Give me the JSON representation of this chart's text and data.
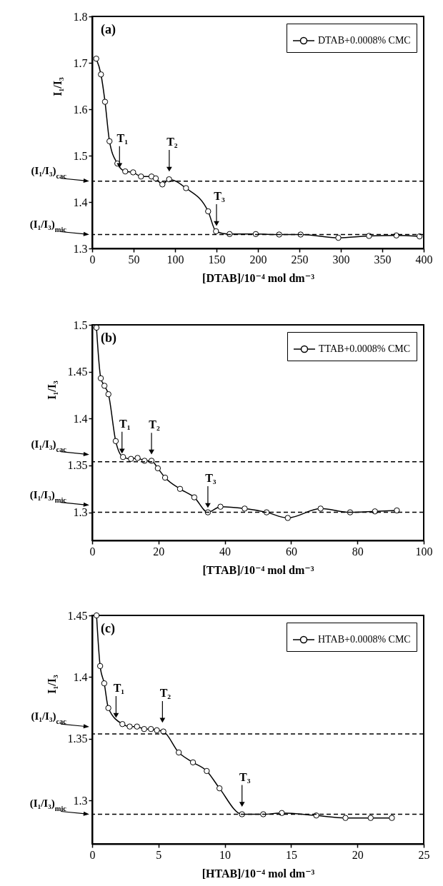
{
  "chart_data": [
    {
      "type": "line",
      "title": "(a)",
      "xlabel": "[DTAB]/10⁻⁴ mol dm⁻³",
      "ylabel": "I₁/I₃",
      "xlim": [
        0,
        400
      ],
      "xticks": [
        0,
        50,
        100,
        150,
        200,
        250,
        300,
        350,
        400
      ],
      "ylim": [
        1.3,
        1.8
      ],
      "yticks": [
        1.3,
        1.4,
        1.5,
        1.6,
        1.7,
        1.8
      ],
      "legend": "top right",
      "marker": "circle",
      "line_style": "solid",
      "series": [
        {
          "name": "DTAB+0.0008% CMC",
          "color": "#000000",
          "x": [
            4.9,
            10.6,
            15.5,
            20.9,
            30.4,
            39.9,
            49.4,
            58.9,
            71.6,
            76.7,
            84.7,
            92.8,
            113.2,
            139.9,
            149.4,
            165.8,
            197.4,
            225.6,
            251.5,
            297,
            334,
            367,
            395
          ],
          "values": [
            1.709,
            1.675,
            1.616,
            1.531,
            1.483,
            1.466,
            1.464,
            1.455,
            1.455,
            1.451,
            1.438,
            1.449,
            1.43,
            1.38,
            1.337,
            1.331,
            1.331,
            1.33,
            1.33,
            1.323,
            1.327,
            1.328,
            1.326
          ]
        }
      ],
      "ref_lines": [
        {
          "axis": "y",
          "value": 1.445,
          "label": "(I₁/I₃)$_{cac}$",
          "line_style": "dashed"
        },
        {
          "axis": "y",
          "value": 1.33,
          "label": "(I₁/I₃)$_{mic}$",
          "line_style": "dashed"
        }
      ],
      "annotations": [
        {
          "text": "T₁",
          "x": 33,
          "y": 1.468
        },
        {
          "text": "T₂",
          "x": 93,
          "y": 1.46
        },
        {
          "text": "T₃",
          "x": 150,
          "y": 1.343
        }
      ]
    },
    {
      "type": "line",
      "title": "(b)",
      "xlabel": "[TTAB]/10⁻⁴ mol dm⁻³",
      "ylabel": "I₁/I₃",
      "xlim": [
        0,
        100
      ],
      "xticks": [
        0,
        20,
        40,
        60,
        80,
        100
      ],
      "ylim": [
        1.27,
        1.5
      ],
      "yticks": [
        1.3,
        1.35,
        1.4,
        1.45,
        1.5
      ],
      "legend": "top right",
      "marker": "circle",
      "line_style": "solid",
      "series": [
        {
          "name": "TTAB+0.0008% CMC",
          "color": "#000000",
          "x": [
            1.3,
            2.6,
            3.7,
            4.9,
            7.1,
            9.3,
            11.7,
            13.7,
            15.8,
            17.9,
            19.8,
            22,
            26.5,
            30.8,
            34.9,
            38.7,
            46,
            52.6,
            59,
            68.9,
            77.8,
            85.3,
            91.9
          ],
          "values": [
            1.497,
            1.443,
            1.435,
            1.426,
            1.376,
            1.359,
            1.357,
            1.358,
            1.355,
            1.355,
            1.347,
            1.337,
            1.325,
            1.316,
            1.3,
            1.306,
            1.304,
            1.3,
            1.294,
            1.304,
            1.3,
            1.301,
            1.302
          ]
        }
      ],
      "ref_lines": [
        {
          "axis": "y",
          "value": 1.354,
          "label": "(I₁/I₃)$_{cac}$",
          "line_style": "dashed"
        },
        {
          "axis": "y",
          "value": 1.3,
          "label": "(I₁/I₃)$_{mic}$",
          "line_style": "dashed"
        }
      ],
      "annotations": [
        {
          "text": "T₁",
          "x": 9,
          "y": 1.36
        },
        {
          "text": "T₂",
          "x": 17.9,
          "y": 1.359
        },
        {
          "text": "T₃",
          "x": 34.9,
          "y": 1.302
        }
      ]
    },
    {
      "type": "line",
      "title": "(c)",
      "xlabel": "[HTAB]/10⁻⁴ mol dm⁻³",
      "ylabel": "I₁/I₃",
      "xlim": [
        0,
        25
      ],
      "xticks": [
        0,
        5,
        10,
        15,
        20,
        25
      ],
      "ylim": [
        1.265,
        1.45
      ],
      "yticks": [
        1.3,
        1.35,
        1.4,
        1.45
      ],
      "legend": "top right",
      "marker": "circle",
      "line_style": "solid",
      "series": [
        {
          "name": "HTAB+0.0008% CMC",
          "color": "#000000",
          "x": [
            0.33,
            0.6,
            0.91,
            1.22,
            2.28,
            2.83,
            3.38,
            3.92,
            4.43,
            4.88,
            5.37,
            6.53,
            7.6,
            8.64,
            9.6,
            11.3,
            12.9,
            14.3,
            16.9,
            19.1,
            21,
            22.6
          ],
          "values": [
            1.45,
            1.409,
            1.395,
            1.375,
            1.362,
            1.36,
            1.36,
            1.358,
            1.358,
            1.357,
            1.356,
            1.339,
            1.331,
            1.324,
            1.31,
            1.289,
            1.289,
            1.29,
            1.288,
            1.286,
            1.286,
            1.286
          ]
        }
      ],
      "ref_lines": [
        {
          "axis": "y",
          "value": 1.354,
          "label": "(I₁/I₃)$_{cac}$",
          "line_style": "dashed"
        },
        {
          "axis": "y",
          "value": 1.289,
          "label": "(I₁/I₃)$_{mic}$",
          "line_style": "dashed"
        }
      ],
      "annotations": [
        {
          "text": "T₁",
          "x": 1.8,
          "y": 1.365
        },
        {
          "text": "T₂",
          "x": 5.3,
          "y": 1.361
        },
        {
          "text": "T₃",
          "x": 11.3,
          "y": 1.293
        }
      ]
    }
  ]
}
